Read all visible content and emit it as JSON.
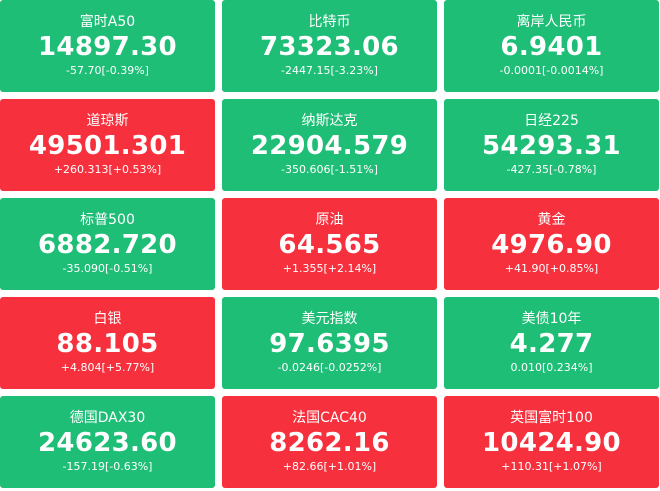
{
  "tiles": [
    {
      "name": "富时A50",
      "value": "14897.30",
      "change": "-57.70[-0.39%]",
      "color": "#1ebe77"
    },
    {
      "name": "比特币",
      "value": "73323.06",
      "change": "-2447.15[-3.23%]",
      "color": "#1ebe77"
    },
    {
      "name": "离岸人民币",
      "value": "6.9401",
      "change": "-0.0001[-0.0014%]",
      "color": "#1ebe77"
    },
    {
      "name": "道琼斯",
      "value": "49501.301",
      "change": "+260.313[+0.53%]",
      "color": "#f7303d"
    },
    {
      "name": "纳斯达克",
      "value": "22904.579",
      "change": "-350.606[-1.51%]",
      "color": "#1ebe77"
    },
    {
      "name": "日经225",
      "value": "54293.31",
      "change": "-427.35[-0.78%]",
      "color": "#1ebe77"
    },
    {
      "name": "标普500",
      "value": "6882.720",
      "change": "-35.090[-0.51%]",
      "color": "#1ebe77"
    },
    {
      "name": "原油",
      "value": "64.565",
      "change": "+1.355[+2.14%]",
      "color": "#f7303d"
    },
    {
      "name": "黄金",
      "value": "4976.90",
      "change": "+41.90[+0.85%]",
      "color": "#f7303d"
    },
    {
      "name": "白银",
      "value": "88.105",
      "change": "+4.804[+5.77%]",
      "color": "#f7303d"
    },
    {
      "name": "美元指数",
      "value": "97.6395",
      "change": "-0.0246[-0.0252%]",
      "color": "#1ebe77"
    },
    {
      "name": "美债10年",
      "value": "4.277",
      "change": "0.010[0.234%]",
      "color": "#1ebe77"
    },
    {
      "name": "德国DAX30",
      "value": "24623.60",
      "change": "-157.19[-0.63%]",
      "color": "#1ebe77"
    },
    {
      "name": "法国CAC40",
      "value": "8262.16",
      "change": "+82.66[+1.01%]",
      "color": "#f7303d"
    },
    {
      "name": "英国富时100",
      "value": "10424.90",
      "change": "+110.31[+1.07%]",
      "color": "#f7303d"
    }
  ]
}
